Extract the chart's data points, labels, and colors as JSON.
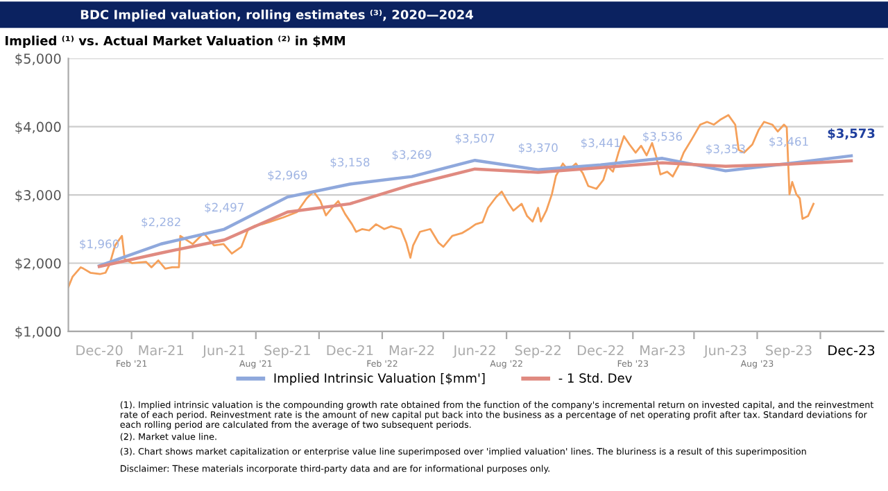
{
  "chart_data": {
    "type": "line",
    "title": "BDC Implied valuation, rolling estimates ⁽³⁾, 2020—2024",
    "subtitle": "Implied ⁽¹⁾ vs. Actual Market Valuation ⁽²⁾ in $MM",
    "xlim": [
      "2020-11-01",
      "2024-02-01"
    ],
    "xticks": [
      {
        "value": "2020-12-16",
        "label": "Dec-20"
      },
      {
        "value": "2021-02-01",
        "label": null
      },
      {
        "value": "2021-03-16",
        "label": "Mar-21"
      },
      {
        "value": "2021-05-01",
        "label": null
      },
      {
        "value": "2021-06-16",
        "label": "Jun-21"
      },
      {
        "value": "2021-08-01",
        "label": null
      },
      {
        "value": "2021-09-16",
        "label": "Sep-21"
      },
      {
        "value": "2021-11-01",
        "label": null
      },
      {
        "value": "2021-12-16",
        "label": "Dec-21"
      },
      {
        "value": "2022-02-01",
        "label": null
      },
      {
        "value": "2022-03-16",
        "label": "Mar-22"
      },
      {
        "value": "2022-05-01",
        "label": null
      },
      {
        "value": "2022-06-16",
        "label": "Jun-22"
      },
      {
        "value": "2022-08-01",
        "label": null
      },
      {
        "value": "2022-09-16",
        "label": "Sep-22"
      },
      {
        "value": "2022-11-01",
        "label": null
      },
      {
        "value": "2022-12-16",
        "label": "Dec-22"
      },
      {
        "value": "2023-02-01",
        "label": null
      },
      {
        "value": "2023-03-16",
        "label": "Mar-23"
      },
      {
        "value": "2023-05-01",
        "label": null
      },
      {
        "value": "2023-06-16",
        "label": "Jun-23"
      },
      {
        "value": "2023-08-01",
        "label": null
      },
      {
        "value": "2023-09-16",
        "label": "Sep-23"
      },
      {
        "value": "2023-11-01",
        "label": null
      },
      {
        "value": "2023-12-16",
        "label": "Dec-23"
      }
    ],
    "x2lim": [
      "2020-11-01",
      "2024-02-01"
    ],
    "x2ticks": [
      {
        "value": "2021-02-01",
        "label": "Feb '21"
      },
      {
        "value": "2021-08-01",
        "label": "Aug '21"
      },
      {
        "value": "2022-02-01",
        "label": "Feb '22"
      },
      {
        "value": "2022-08-01",
        "label": "Aug '22"
      },
      {
        "value": "2023-02-01",
        "label": "Feb '23"
      },
      {
        "value": "2023-08-01",
        "label": "Aug '23"
      }
    ],
    "ylim": [
      1000,
      5000
    ],
    "yticks": [
      {
        "value": 1000,
        "label": "$1,000"
      },
      {
        "value": 2000,
        "label": "$2,000"
      },
      {
        "value": 3000,
        "label": "$3,000"
      },
      {
        "value": 4000,
        "label": "$4,000"
      },
      {
        "value": 5000,
        "label": "$5,000"
      }
    ],
    "grid": "y",
    "legend": "bottom",
    "marker": "none",
    "line_style": "solid",
    "series": [
      {
        "name": "Implied Intrinsic Valuation [$mm']",
        "color": "#8fa8dc",
        "x": [
          "2020-12-16",
          "2021-03-16",
          "2021-06-16",
          "2021-09-16",
          "2021-12-16",
          "2022-03-16",
          "2022-06-16",
          "2022-09-16",
          "2022-12-16",
          "2023-03-16",
          "2023-06-16",
          "2023-09-16",
          "2023-12-16"
        ],
        "values": [
          1960,
          2282,
          2497,
          2969,
          3158,
          3269,
          3507,
          3370,
          3441,
          3536,
          3353,
          3461,
          3573
        ],
        "value_labels": [
          "$1,960",
          "$2,282",
          "$2,497",
          "$2,969",
          "$3,158",
          "$3,269",
          "$3,507",
          "$3,370",
          "$3,441",
          "$3,536",
          "$3,353",
          "$3,461",
          "$3,573"
        ]
      },
      {
        "name": "- 1 Std. Dev",
        "color": "#e08a80",
        "x": [
          "2020-12-16",
          "2021-03-16",
          "2021-06-16",
          "2021-09-16",
          "2021-12-16",
          "2022-03-16",
          "2022-06-16",
          "2022-09-16",
          "2022-12-16",
          "2023-03-16",
          "2023-06-16",
          "2023-09-16",
          "2023-12-16"
        ],
        "values": [
          1950,
          2150,
          2340,
          2750,
          2870,
          3150,
          3380,
          3330,
          3400,
          3470,
          3420,
          3450,
          3500
        ]
      },
      {
        "color": "#f5a05a",
        "x": [
          "2020-11-01",
          "2020-11-07",
          "2020-11-19",
          "2020-11-23",
          "2020-12-03",
          "2020-12-17",
          "2020-12-25",
          "2020-12-31",
          "2021-01-08",
          "2021-01-18",
          "2021-01-22",
          "2021-02-02",
          "2021-02-22",
          "2021-03-02",
          "2021-03-12",
          "2021-03-22",
          "2021-04-01",
          "2021-04-11",
          "2021-04-13",
          "2021-05-01",
          "2021-05-17",
          "2021-06-01",
          "2021-06-15",
          "2021-06-27",
          "2021-07-11",
          "2021-07-21",
          "2021-07-31",
          "2021-08-10",
          "2021-08-20",
          "2021-09-10",
          "2021-09-30",
          "2021-10-14",
          "2021-10-24",
          "2021-11-03",
          "2021-11-11",
          "2021-11-19",
          "2021-11-29",
          "2021-12-09",
          "2021-12-19",
          "2021-12-25",
          "2022-01-03",
          "2022-01-13",
          "2022-01-23",
          "2022-02-04",
          "2022-02-14",
          "2022-02-28",
          "2022-03-08",
          "2022-03-14",
          "2022-03-18",
          "2022-03-28",
          "2022-04-12",
          "2022-04-24",
          "2022-05-01",
          "2022-05-14",
          "2022-05-28",
          "2022-06-07",
          "2022-06-17",
          "2022-06-27",
          "2022-07-05",
          "2022-07-17",
          "2022-07-25",
          "2022-08-03",
          "2022-08-11",
          "2022-08-23",
          "2022-08-31",
          "2022-09-08",
          "2022-09-16",
          "2022-09-20",
          "2022-09-28",
          "2022-10-06",
          "2022-10-12",
          "2022-10-22",
          "2022-10-30",
          "2022-11-10",
          "2022-11-20",
          "2022-11-28",
          "2022-12-10",
          "2022-12-20",
          "2022-12-26",
          "2023-01-03",
          "2023-01-11",
          "2023-01-19",
          "2023-01-27",
          "2023-02-05",
          "2023-02-13",
          "2023-02-21",
          "2023-03-01",
          "2023-03-07",
          "2023-03-13",
          "2023-03-23",
          "2023-03-31",
          "2023-04-08",
          "2023-04-16",
          "2023-04-28",
          "2023-05-10",
          "2023-05-20",
          "2023-05-30",
          "2023-06-08",
          "2023-06-20",
          "2023-06-30",
          "2023-07-05",
          "2023-07-13",
          "2023-07-25",
          "2023-08-03",
          "2023-08-11",
          "2023-08-23",
          "2023-08-31",
          "2023-09-09",
          "2023-09-13",
          "2023-09-17",
          "2023-09-21",
          "2023-09-27",
          "2023-10-02",
          "2023-10-06",
          "2023-10-14",
          "2023-10-22"
        ],
        "values": [
          1650,
          1800,
          1940,
          1920,
          1860,
          1840,
          1860,
          1980,
          2260,
          2400,
          2060,
          2000,
          2020,
          1940,
          2040,
          1920,
          1940,
          1940,
          2400,
          2280,
          2440,
          2260,
          2280,
          2140,
          2240,
          2500,
          2550,
          2570,
          2600,
          2670,
          2750,
          2950,
          3050,
          2910,
          2700,
          2800,
          2910,
          2720,
          2570,
          2460,
          2500,
          2480,
          2570,
          2500,
          2540,
          2500,
          2300,
          2080,
          2260,
          2460,
          2500,
          2300,
          2240,
          2400,
          2440,
          2500,
          2570,
          2600,
          2810,
          2970,
          3050,
          2890,
          2770,
          2870,
          2690,
          2610,
          2810,
          2610,
          2770,
          3010,
          3280,
          3460,
          3360,
          3460,
          3320,
          3130,
          3090,
          3220,
          3420,
          3340,
          3620,
          3860,
          3740,
          3620,
          3720,
          3580,
          3760,
          3560,
          3300,
          3340,
          3270,
          3420,
          3620,
          3820,
          4030,
          4070,
          4030,
          4100,
          4170,
          4030,
          3660,
          3620,
          3740,
          3950,
          4070,
          4030,
          3930,
          4030,
          3990,
          3010,
          3190,
          3010,
          2950,
          2650,
          2690,
          2870
        ]
      }
    ],
    "annotations": [
      "(1). Implied intrinsic valuation is the compounding growth rate obtained from the function of the company's incremental return on invested capital, and the reinvestment rate of each period. Reinvestment rate is the amount of new capital put back into the business as a percentage of net operating profit after tax. Standard deviations for each rolling period are calculated from the average of two subsequent periods.",
      "(2). Market value line.",
      "(3). Chart shows market capitalization or enterprise value line superimposed over 'implied valuation' lines. The bluriness is a result of this superimposition",
      "Disclaimer: These materials incorporate third-party data and are for informational purposes only."
    ]
  }
}
